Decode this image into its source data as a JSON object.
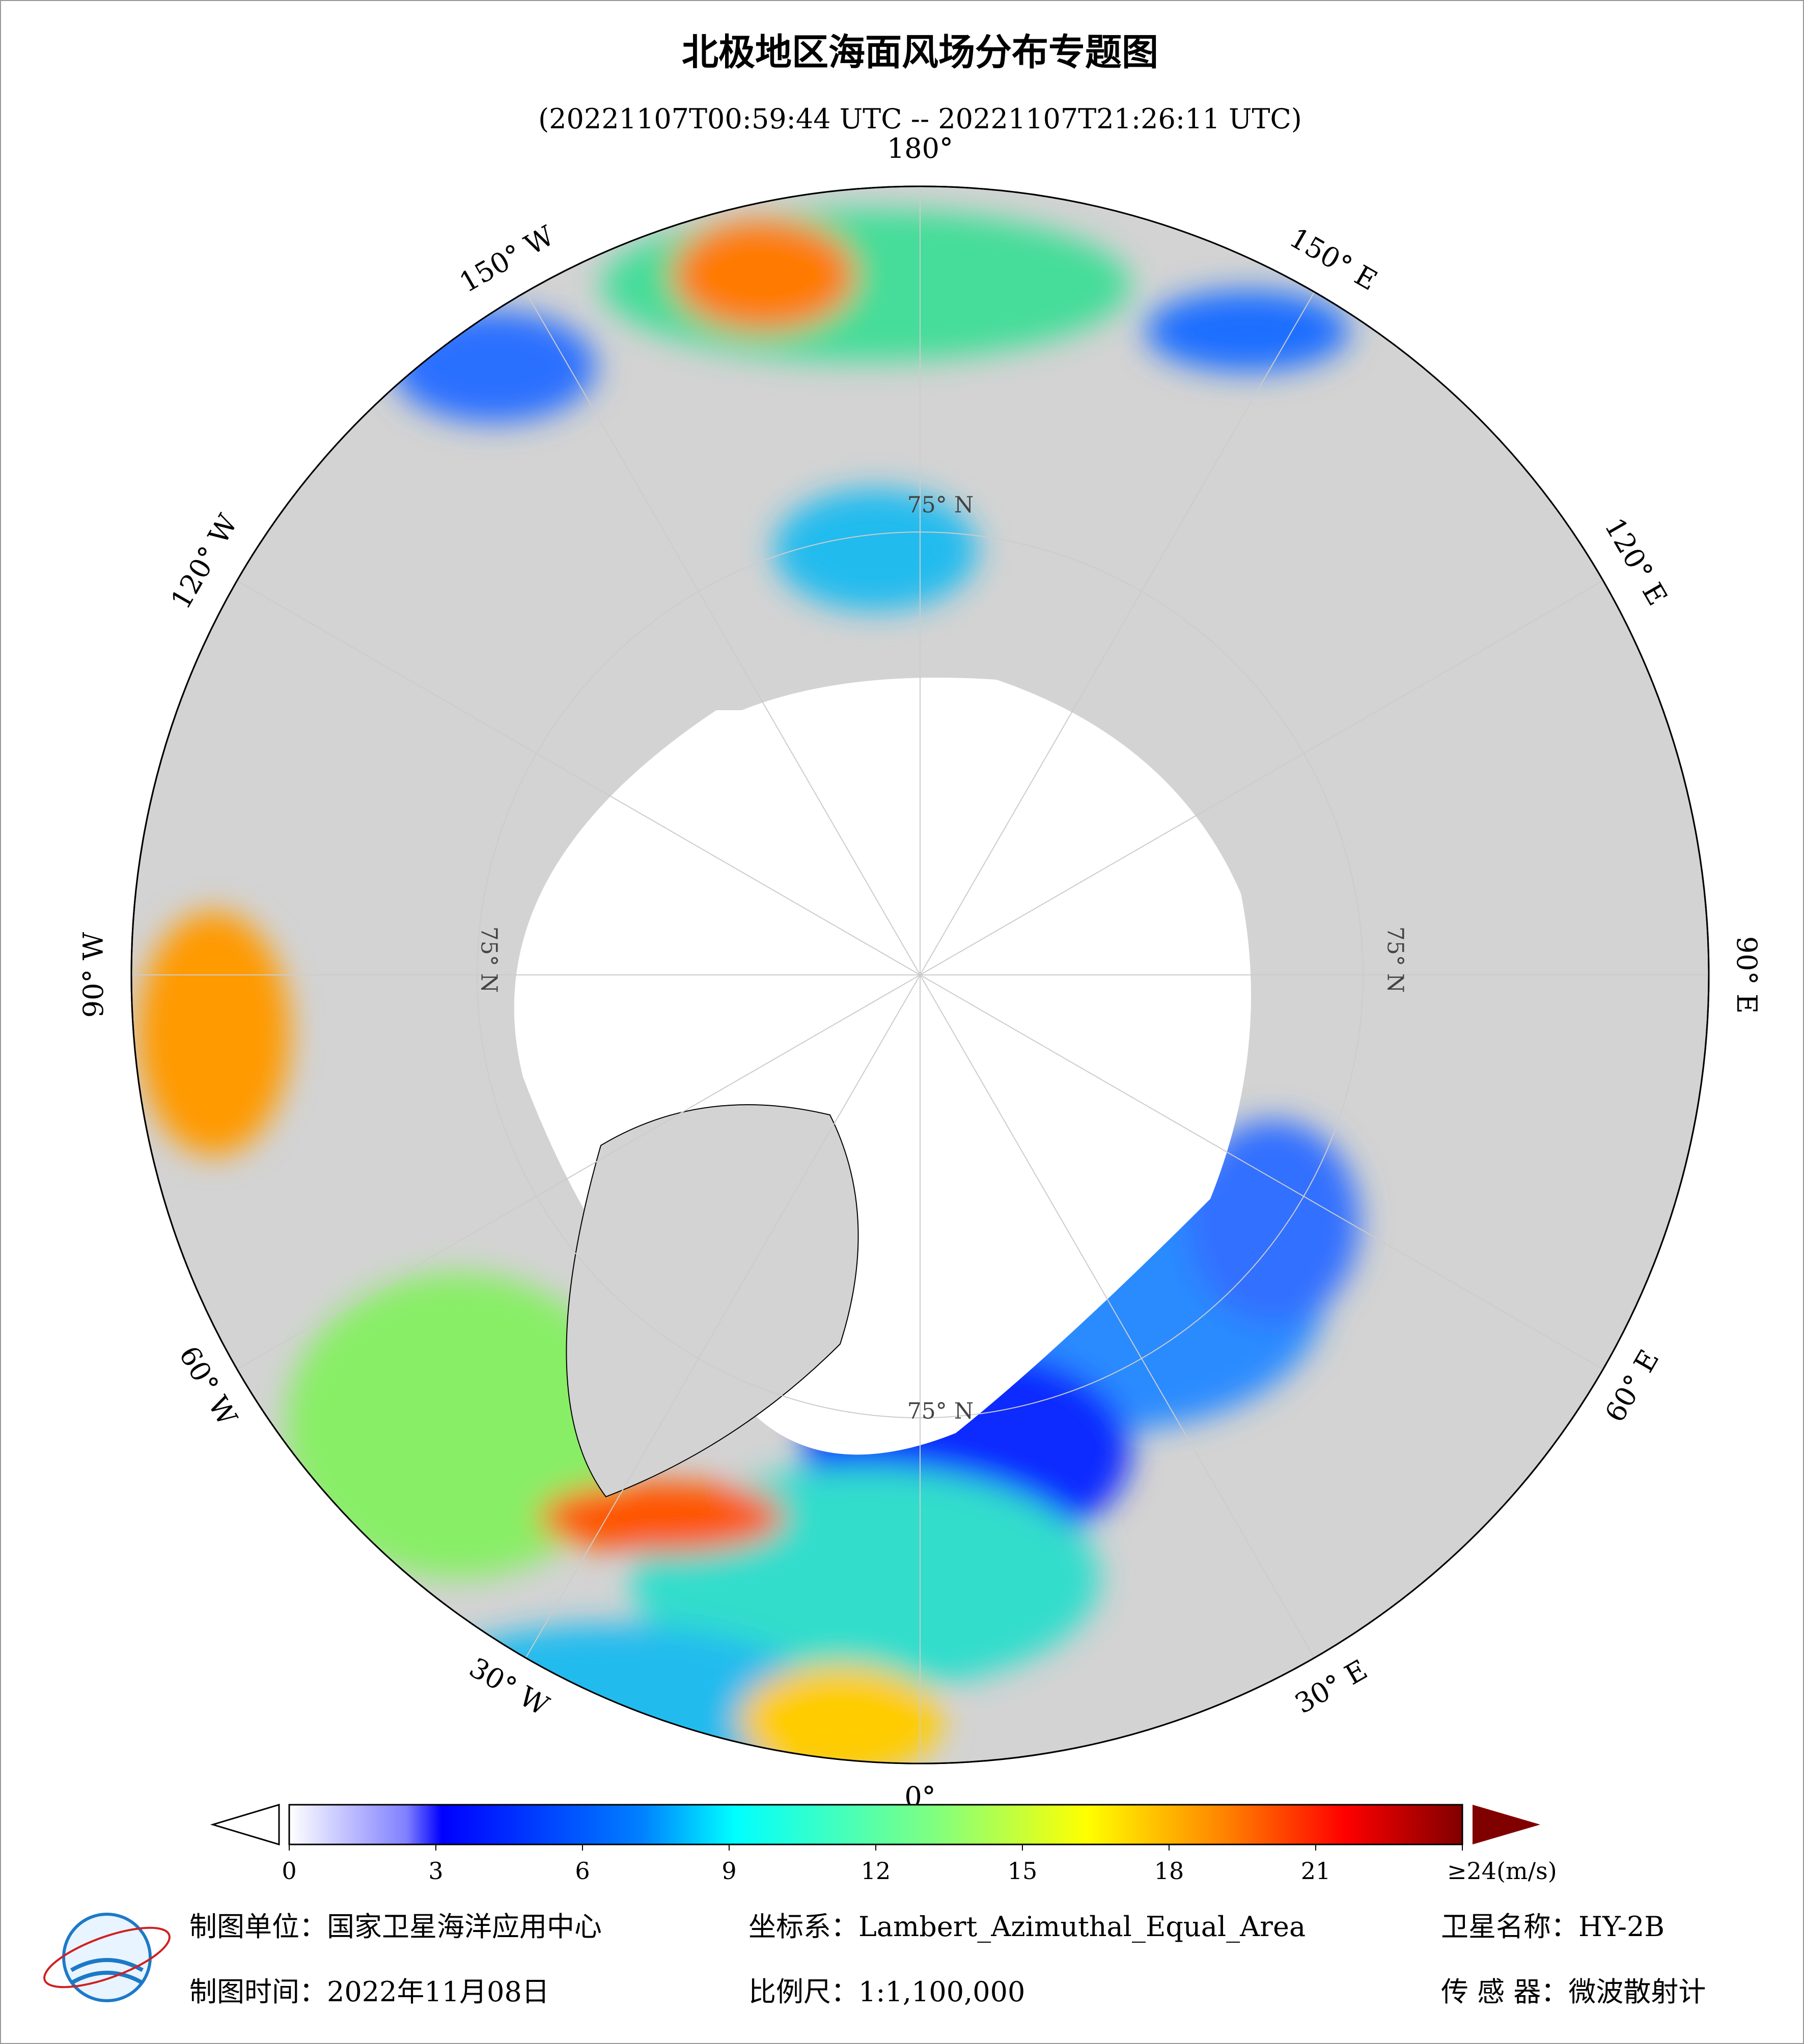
{
  "title": "北极地区海面风场分布专题图",
  "subtitle": "(20221107T00:59:44 UTC -- 20221107T21:26:11 UTC)",
  "longitude_labels": [
    "180°",
    "150° E",
    "120° E",
    "90° E",
    "60° E",
    "30° E",
    "0°",
    "30° W",
    "60° W",
    "90° W",
    "120° W",
    "150° W"
  ],
  "latitude_labels": [
    "75° N",
    "75° N",
    "75° N",
    "75° N"
  ],
  "colorbar": {
    "range": [
      0,
      24
    ],
    "ticks": [
      0,
      3,
      6,
      9,
      12,
      15,
      18,
      21,
      {
        "value": 24,
        "label": "≥24(m/s)"
      }
    ]
  },
  "footer": {
    "unit": "制图单位：国家卫星海洋应用中心",
    "projection": "坐标系：Lambert_Azimuthal_Equal_Area",
    "satellite": "卫星名称：HY-2B",
    "date": "制图时间：2022年11月08日",
    "scale": "比例尺：1:1,100,000",
    "sensor": "传 感 器：微波散射计"
  }
}
